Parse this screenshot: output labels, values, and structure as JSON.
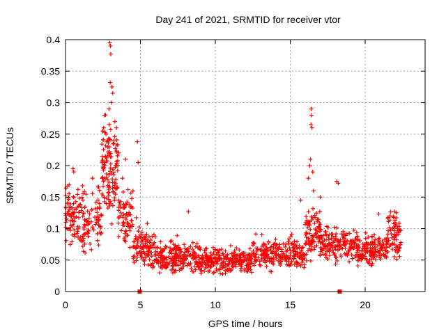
{
  "chart_data": {
    "type": "scatter",
    "title": "Day 241 of 2021, SRMTID for receiver vtor",
    "xlabel": "GPS time / hours",
    "ylabel": "SRMTID / TECUs",
    "xlim": [
      0,
      24
    ],
    "ylim": [
      0,
      0.4
    ],
    "x_ticks": [
      0,
      5,
      10,
      15,
      20
    ],
    "x_tick_labels": [
      "0",
      "5",
      "10",
      "15",
      "20"
    ],
    "y_ticks": [
      0,
      0.05,
      0.1,
      0.15,
      0.2,
      0.25,
      0.3,
      0.35,
      0.4
    ],
    "y_tick_labels": [
      "0",
      "0.05",
      "0.1",
      "0.15",
      "0.2",
      "0.25",
      "0.3",
      "0.35",
      "0.4"
    ],
    "grid": true,
    "marker": "plus",
    "color": "#ff0000",
    "zero_markers_x": [
      4.95,
      18.3
    ],
    "series": [
      {
        "name": "SRMTID",
        "segments": [
          {
            "x_start": 0.0,
            "x_end": 1.0,
            "baseline": 0.12,
            "spread": 0.05,
            "n": 80
          },
          {
            "x_start": 1.0,
            "x_end": 2.4,
            "baseline": 0.11,
            "spread": 0.05,
            "n": 90
          },
          {
            "x_start": 2.4,
            "x_end": 3.5,
            "baseline": 0.2,
            "spread": 0.08,
            "n": 120
          },
          {
            "x_start": 3.5,
            "x_end": 4.5,
            "baseline": 0.12,
            "spread": 0.05,
            "n": 70
          },
          {
            "x_start": 4.5,
            "x_end": 6.0,
            "baseline": 0.07,
            "spread": 0.035,
            "n": 110
          },
          {
            "x_start": 6.0,
            "x_end": 9.0,
            "baseline": 0.055,
            "spread": 0.025,
            "n": 220
          },
          {
            "x_start": 9.0,
            "x_end": 12.5,
            "baseline": 0.05,
            "spread": 0.02,
            "n": 240
          },
          {
            "x_start": 12.5,
            "x_end": 16.0,
            "baseline": 0.06,
            "spread": 0.025,
            "n": 230
          },
          {
            "x_start": 16.0,
            "x_end": 17.0,
            "baseline": 0.09,
            "spread": 0.04,
            "n": 90
          },
          {
            "x_start": 17.0,
            "x_end": 19.5,
            "baseline": 0.075,
            "spread": 0.025,
            "n": 160
          },
          {
            "x_start": 19.5,
            "x_end": 21.5,
            "baseline": 0.065,
            "spread": 0.025,
            "n": 140
          },
          {
            "x_start": 21.5,
            "x_end": 22.4,
            "baseline": 0.09,
            "spread": 0.035,
            "n": 70
          }
        ],
        "peaks": [
          {
            "x": 2.95,
            "y": 0.395
          },
          {
            "x": 3.0,
            "y": 0.39
          },
          {
            "x": 3.02,
            "y": 0.377
          },
          {
            "x": 2.98,
            "y": 0.332
          },
          {
            "x": 3.1,
            "y": 0.325
          },
          {
            "x": 3.15,
            "y": 0.315
          },
          {
            "x": 3.05,
            "y": 0.3
          },
          {
            "x": 2.9,
            "y": 0.29
          },
          {
            "x": 3.3,
            "y": 0.27
          },
          {
            "x": 2.6,
            "y": 0.28
          },
          {
            "x": 2.55,
            "y": 0.26
          },
          {
            "x": 2.7,
            "y": 0.25
          },
          {
            "x": 3.4,
            "y": 0.26
          },
          {
            "x": 2.8,
            "y": 0.24
          },
          {
            "x": 3.55,
            "y": 0.22
          },
          {
            "x": 3.5,
            "y": 0.2
          },
          {
            "x": 3.8,
            "y": 0.18
          },
          {
            "x": 4.0,
            "y": 0.21
          },
          {
            "x": 4.8,
            "y": 0.238
          },
          {
            "x": 4.85,
            "y": 0.205
          },
          {
            "x": 16.4,
            "y": 0.29
          },
          {
            "x": 16.42,
            "y": 0.28
          },
          {
            "x": 16.38,
            "y": 0.265
          },
          {
            "x": 16.45,
            "y": 0.26
          },
          {
            "x": 16.35,
            "y": 0.21
          },
          {
            "x": 16.5,
            "y": 0.19
          },
          {
            "x": 16.3,
            "y": 0.2
          },
          {
            "x": 16.55,
            "y": 0.16
          },
          {
            "x": 16.2,
            "y": 0.18
          },
          {
            "x": 15.7,
            "y": 0.145
          },
          {
            "x": 17.0,
            "y": 0.15
          },
          {
            "x": 18.1,
            "y": 0.175
          },
          {
            "x": 18.2,
            "y": 0.172
          },
          {
            "x": 8.2,
            "y": 0.127
          },
          {
            "x": 20.9,
            "y": 0.123
          },
          {
            "x": 0.5,
            "y": 0.195
          },
          {
            "x": 0.55,
            "y": 0.19
          },
          {
            "x": 1.8,
            "y": 0.18
          }
        ]
      }
    ]
  }
}
